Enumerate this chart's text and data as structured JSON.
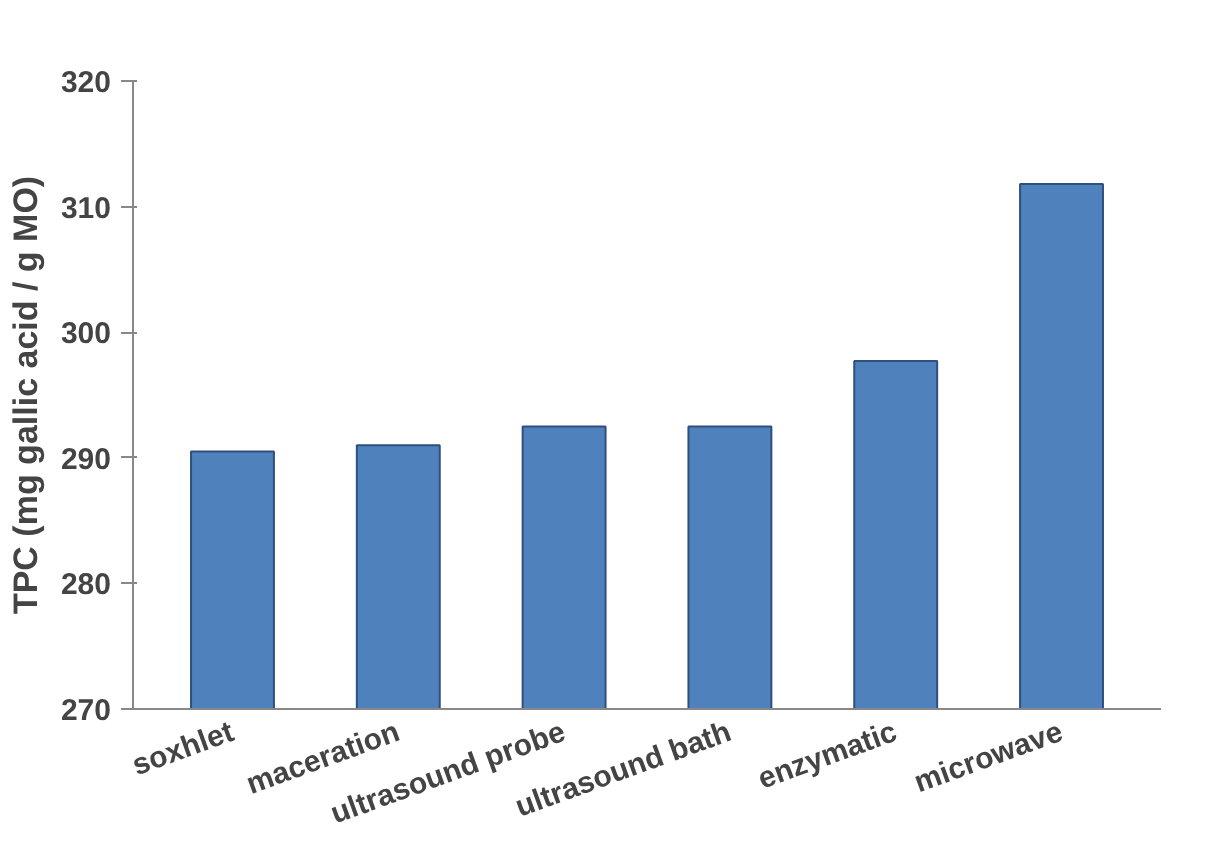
{
  "chart_data": {
    "type": "bar",
    "ylabel": "TPC (mg gallic acid / g MO)",
    "categories": [
      "soxhlet",
      "maceration",
      "ultrasound probe",
      "ultrasound bath",
      "enzymatic",
      "microwave"
    ],
    "values": [
      290.5,
      291,
      292.5,
      292.5,
      297.7,
      311.8
    ],
    "color": "#4f81bd",
    "ylim": [
      270,
      320
    ],
    "yticks": [
      270,
      280,
      290,
      300,
      310,
      320
    ],
    "grid": false
  }
}
